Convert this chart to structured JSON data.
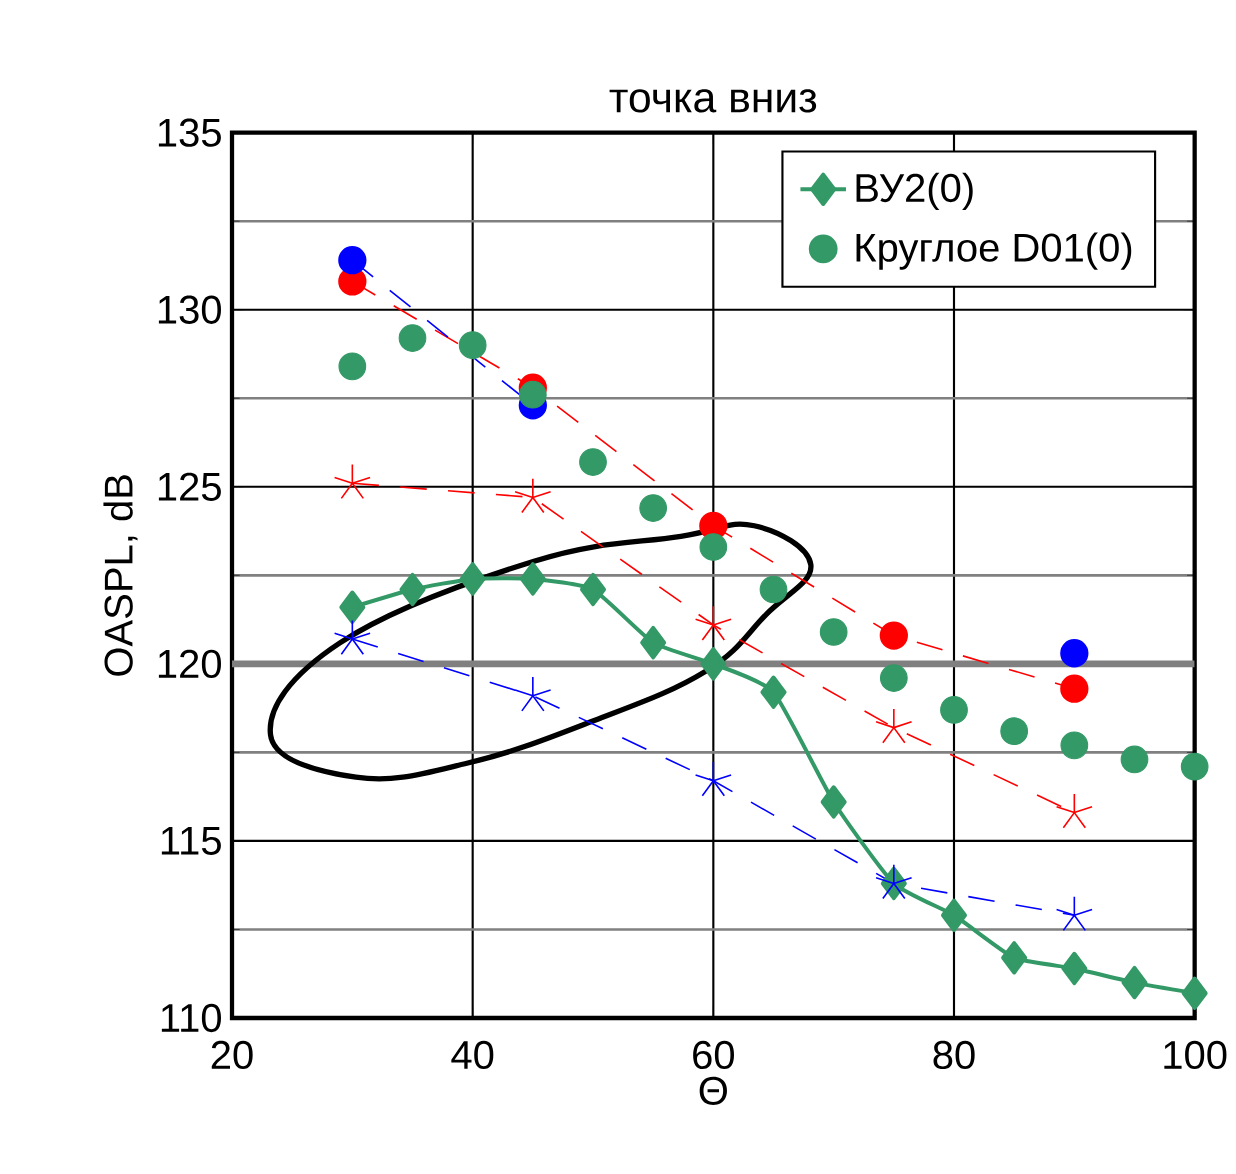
{
  "chart_data": {
    "type": "line",
    "title": "точка вниз",
    "xlabel": "Θ",
    "ylabel": "OASPL, dB",
    "xlim": [
      20,
      100
    ],
    "ylim": [
      110,
      135
    ],
    "xticks": [
      20,
      40,
      60,
      80,
      100
    ],
    "yticks": [
      110,
      115,
      120,
      125,
      130,
      135
    ],
    "grid": true,
    "legend": "top right",
    "ref_lines": [
      {
        "axis": "y",
        "value": 120,
        "color": "#808080"
      }
    ],
    "series": [
      {
        "name": "ВУ2(0)",
        "color": "#339966",
        "marker": "diamond",
        "line_style": "solid",
        "x": [
          30,
          35,
          40,
          45,
          50,
          55,
          60,
          65,
          70,
          75,
          80,
          85,
          90,
          95,
          100
        ],
        "values": [
          121.6,
          122.1,
          122.4,
          122.4,
          122.1,
          120.6,
          120.0,
          119.2,
          116.1,
          113.8,
          112.9,
          111.7,
          111.4,
          111.0,
          110.7
        ]
      },
      {
        "name": "Круглое D01(0)",
        "type": "scatter",
        "color": "#339966",
        "marker": "circle",
        "x": [
          30,
          35,
          40,
          45,
          50,
          55,
          60,
          65,
          70,
          75,
          80,
          85,
          90,
          95,
          100
        ],
        "values": [
          128.4,
          129.2,
          129.0,
          127.6,
          125.7,
          124.4,
          123.3,
          122.1,
          120.9,
          119.6,
          118.7,
          118.1,
          117.7,
          117.3,
          117.1
        ]
      },
      {
        "color": "#0000ff",
        "marker": "circle",
        "line_style": "dashed",
        "x": [
          30,
          45,
          60,
          75,
          90
        ],
        "values": [
          131.4,
          127.3,
          null,
          null,
          120.3
        ]
      },
      {
        "color": "#ff0000",
        "marker": "circle",
        "line_style": "dashed",
        "x": [
          30,
          45,
          60,
          75,
          90
        ],
        "values": [
          130.8,
          127.8,
          123.9,
          120.8,
          119.3
        ]
      },
      {
        "color": "#ff0000",
        "marker": "cross",
        "line_style": "dashed",
        "x": [
          30,
          45,
          60,
          75,
          90
        ],
        "values": [
          125.1,
          124.7,
          121.1,
          118.2,
          115.8
        ]
      },
      {
        "color": "#0000ff",
        "marker": "cross",
        "line_style": "dashed",
        "x": [
          30,
          45,
          60,
          75,
          90
        ],
        "values": [
          120.7,
          119.1,
          116.7,
          113.8,
          112.9
        ]
      }
    ]
  }
}
